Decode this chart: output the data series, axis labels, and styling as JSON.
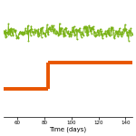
{
  "xlim": [
    50,
    145
  ],
  "xlabel": "Time (days)",
  "background_color": "#ffffff",
  "green_line_color": "#7ab317",
  "orange_line_color": "#e85500",
  "green_y_mean": 7.5,
  "green_noise_std": 0.25,
  "orange_y_low": 2.5,
  "orange_y_high": 4.8,
  "orange_step_x": 83,
  "ylim": [
    0,
    10
  ],
  "xticks": [
    60,
    80,
    100,
    120,
    140
  ],
  "xlabel_fontsize": 5,
  "tick_fontsize": 4
}
